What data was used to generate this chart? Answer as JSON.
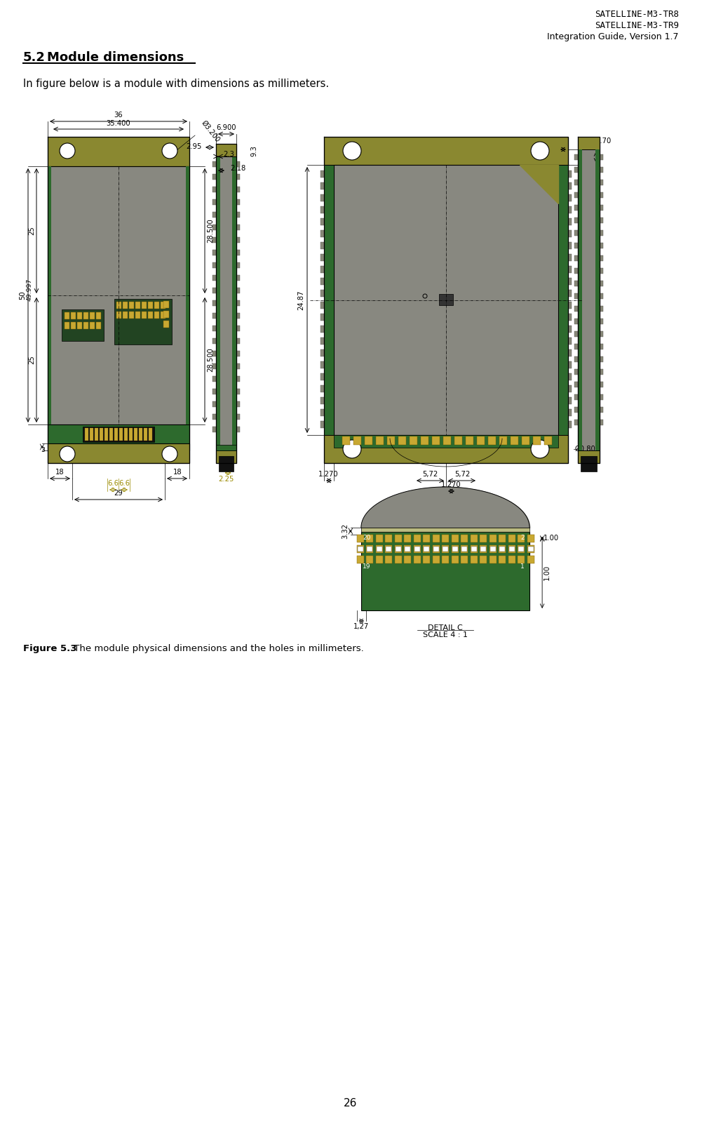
{
  "header_line1": "SATELLINE-M3-TR8",
  "header_line2": "SATELLINE-M3-TR9",
  "header_line3": "Integration Guide, Version 1.7",
  "section_number": "5.2",
  "section_title": "Module dimensions",
  "body_text": "In figure below is a module with dimensions as millimeters.",
  "figure_caption_bold": "Figure 5.3",
  "figure_caption_normal": " The module physical dimensions and the holes in millimeters.",
  "page_number": "26",
  "background_color": "#ffffff",
  "text_color": "#000000",
  "dim_yellow": "#9a8a00",
  "green_color": "#2d6a2d",
  "olive_color": "#8a8830",
  "gray_color": "#888880",
  "dark_gray": "#444444",
  "connector_gray": "#888878"
}
